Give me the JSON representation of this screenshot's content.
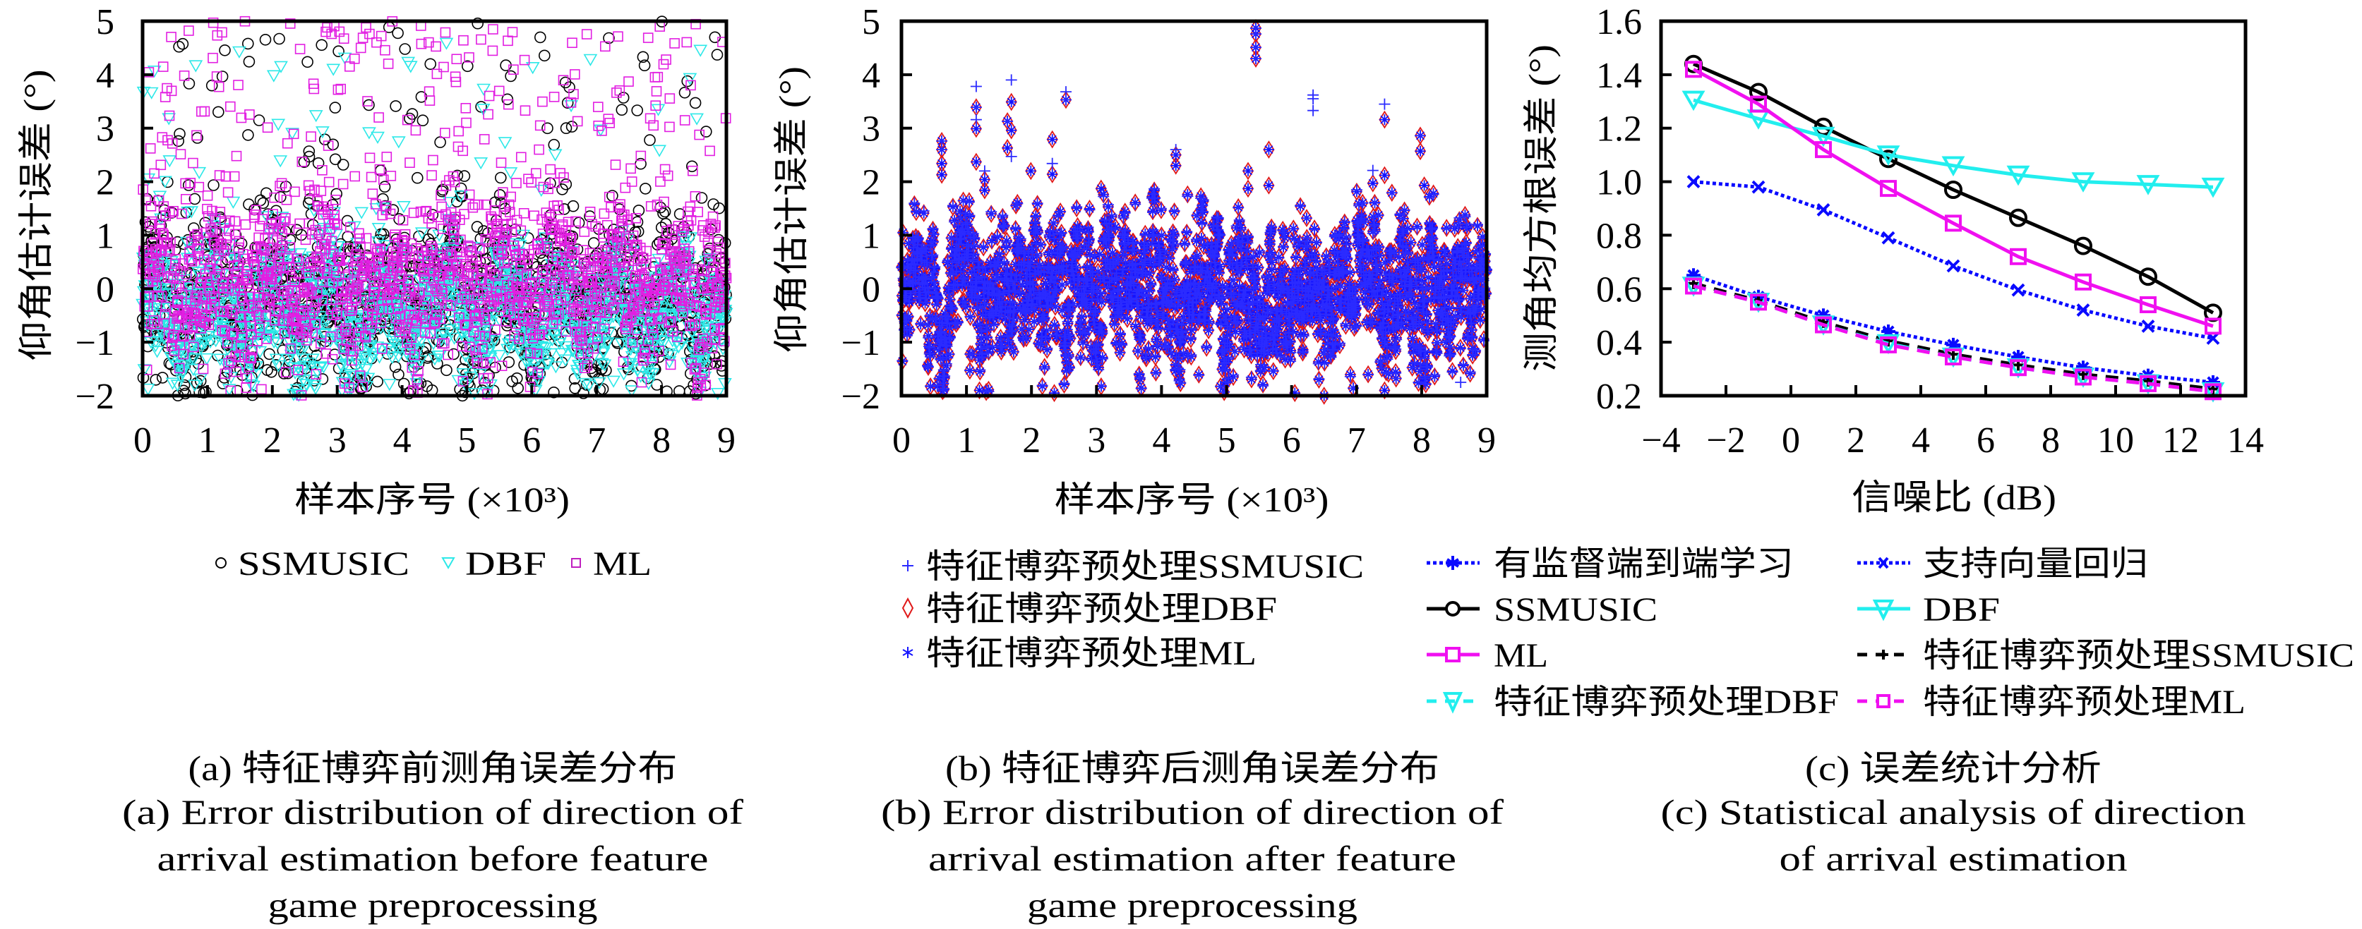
{
  "chart_data": [
    {
      "id": "a",
      "type": "scatter",
      "caption": [
        "(a) 特征博弈前测角误差分布",
        "(a) Error distribution of direction of",
        "arrival estimation before feature",
        "game preprocessing"
      ],
      "xlabel": "样本序号 (×10³)",
      "ylabel": "仰角估计误差 (°)",
      "xlim": [
        0,
        9
      ],
      "ylim": [
        -2,
        5
      ],
      "xtick_values": [
        0,
        1,
        2,
        3,
        4,
        5,
        6,
        7,
        8,
        9
      ],
      "xticks": [
        "0",
        "1",
        "2",
        "3",
        "4",
        "5",
        "6",
        "7",
        "8",
        "9"
      ],
      "ytick_values": [
        -2,
        -1,
        0,
        1,
        2,
        3,
        4,
        5
      ],
      "yticks": [
        "−2",
        "−1",
        "0",
        "1",
        "2",
        "3",
        "4",
        "5"
      ],
      "grid": false,
      "legend_position": "bottom",
      "series": [
        {
          "name": "SSMUSIC",
          "marker": "circle",
          "color": "#000000",
          "n_samples": 9000,
          "mean": -0.25,
          "std": 0.8,
          "upper_outlier_fraction": 0.05,
          "upper_outlier_range": [
            1.4,
            5
          ]
        },
        {
          "name": "DBF",
          "marker": "triangle-down",
          "color": "#2ce8e8",
          "n_samples": 9000,
          "mean": -0.45,
          "std": 0.6,
          "upper_outlier_fraction": 0.03,
          "upper_outlier_range": [
            1.4,
            4.6
          ]
        },
        {
          "name": "ML",
          "marker": "square",
          "color": "#e21ee2",
          "n_samples": 9000,
          "mean": 0.15,
          "std": 0.75,
          "upper_outlier_fraction": 0.12,
          "upper_outlier_range": [
            1.4,
            5
          ]
        }
      ]
    },
    {
      "id": "b",
      "type": "scatter",
      "caption": [
        "(b) 特征博弈后测角误差分布",
        "(b) Error distribution of direction of",
        "arrival estimation after feature",
        "game preprocessing"
      ],
      "xlabel": "样本序号 (×10³)",
      "ylabel": "仰角估计误差 (°)",
      "xlim": [
        0,
        9
      ],
      "ylim": [
        -2,
        5
      ],
      "xtick_values": [
        0,
        1,
        2,
        3,
        4,
        5,
        6,
        7,
        8,
        9
      ],
      "xticks": [
        "0",
        "1",
        "2",
        "3",
        "4",
        "5",
        "6",
        "7",
        "8",
        "9"
      ],
      "ytick_values": [
        -2,
        -1,
        0,
        1,
        2,
        3,
        4,
        5
      ],
      "yticks": [
        "−2",
        "−1",
        "0",
        "1",
        "2",
        "3",
        "4",
        "5"
      ],
      "grid": false,
      "legend_position": "bottom",
      "band": {
        "n_samples": 9000,
        "min": -1.95,
        "max": 1.85,
        "std": 0.5
      },
      "series": [
        {
          "name": "特征博弈预处理SSMUSIC",
          "marker": "plus",
          "color": "#2b2bff",
          "outliers": [
            [
              1.15,
              3.78
            ],
            [
              1.15,
              3.16
            ],
            [
              1.28,
              2.2
            ],
            [
              1.69,
              3.9
            ],
            [
              1.69,
              2.47
            ],
            [
              2.32,
              2.34
            ],
            [
              2.53,
              3.68
            ],
            [
              4.22,
              2.6
            ],
            [
              6.33,
              3.62
            ],
            [
              6.33,
              3.55
            ],
            [
              6.33,
              3.33
            ],
            [
              7.25,
              2.21
            ],
            [
              7.43,
              3.45
            ],
            [
              8.6,
              -1.75
            ],
            [
              0.62,
              2.76
            ],
            [
              0.62,
              2.6
            ],
            [
              1.15,
              3.39
            ],
            [
              1.63,
              3.13
            ],
            [
              2.53,
              3.53
            ],
            [
              5.45,
              4.87
            ],
            [
              5.45,
              4.76
            ],
            [
              5.45,
              4.51
            ],
            [
              5.45,
              4.3
            ],
            [
              7.98,
              2.86
            ]
          ]
        },
        {
          "name": "特征博弈预处理DBF",
          "marker": "diamond",
          "color": "#e01818",
          "outliers": [
            [
              0.62,
              2.76
            ],
            [
              0.62,
              2.6
            ],
            [
              0.62,
              2.34
            ],
            [
              0.62,
              2.13
            ],
            [
              1.15,
              3.39
            ],
            [
              1.15,
              2.99
            ],
            [
              1.15,
              2.37
            ],
            [
              1.28,
              2.04
            ],
            [
              1.28,
              1.84
            ],
            [
              1.63,
              3.13
            ],
            [
              1.63,
              2.63
            ],
            [
              1.69,
              3.49
            ],
            [
              1.69,
              2.96
            ],
            [
              1.99,
              2.2
            ],
            [
              2.32,
              2.79
            ],
            [
              2.32,
              2.14
            ],
            [
              2.53,
              3.53
            ],
            [
              3.07,
              1.87
            ],
            [
              4.22,
              2.5
            ],
            [
              4.22,
              2.3
            ],
            [
              5.45,
              4.87
            ],
            [
              5.45,
              4.76
            ],
            [
              5.45,
              4.51
            ],
            [
              5.45,
              4.3
            ],
            [
              5.33,
              2.2
            ],
            [
              5.33,
              1.87
            ],
            [
              5.65,
              2.6
            ],
            [
              5.65,
              1.93
            ],
            [
              7.25,
              1.97
            ],
            [
              7.43,
              3.16
            ],
            [
              7.43,
              2.12
            ],
            [
              7.98,
              2.86
            ],
            [
              7.98,
              2.57
            ],
            [
              8.04,
              1.93
            ],
            [
              1.2,
              -1.9
            ],
            [
              2.35,
              -1.95
            ],
            [
              6.05,
              -1.95
            ],
            [
              6.5,
              -2.0
            ],
            [
              7.43,
              -1.9
            ]
          ]
        },
        {
          "name": "特征博弈预处理ML",
          "marker": "star",
          "color": "#1414ff",
          "outliers": [
            [
              0.62,
              2.76
            ],
            [
              0.62,
              2.6
            ],
            [
              0.62,
              2.34
            ],
            [
              0.62,
              2.13
            ],
            [
              1.15,
              3.39
            ],
            [
              1.15,
              2.99
            ],
            [
              1.15,
              2.37
            ],
            [
              1.28,
              2.04
            ],
            [
              1.28,
              1.84
            ],
            [
              1.63,
              3.13
            ],
            [
              1.63,
              2.63
            ],
            [
              1.69,
              3.49
            ],
            [
              1.69,
              2.96
            ],
            [
              1.99,
              2.2
            ],
            [
              2.32,
              2.79
            ],
            [
              2.32,
              2.14
            ],
            [
              2.53,
              3.53
            ],
            [
              3.07,
              1.87
            ],
            [
              4.22,
              2.5
            ],
            [
              4.22,
              2.3
            ],
            [
              5.45,
              4.87
            ],
            [
              5.45,
              4.76
            ],
            [
              5.45,
              4.51
            ],
            [
              5.45,
              4.3
            ],
            [
              5.33,
              2.2
            ],
            [
              5.33,
              1.87
            ],
            [
              5.65,
              2.6
            ],
            [
              5.65,
              1.93
            ],
            [
              7.25,
              1.97
            ],
            [
              7.43,
              3.16
            ],
            [
              7.43,
              2.12
            ],
            [
              7.98,
              2.86
            ],
            [
              7.98,
              2.57
            ],
            [
              8.04,
              1.93
            ],
            [
              1.2,
              -1.9
            ],
            [
              2.35,
              -1.95
            ],
            [
              6.05,
              -1.95
            ],
            [
              6.5,
              -2.0
            ],
            [
              7.43,
              -1.9
            ]
          ]
        }
      ]
    },
    {
      "id": "c",
      "type": "line",
      "caption": [
        "(c) 误差统计分析",
        "(c) Statistical analysis of direction",
        "of arrival estimation"
      ],
      "xlabel": "信噪比 (dB)",
      "ylabel": "测角均方根误差 (°)",
      "xlim": [
        -4,
        14
      ],
      "ylim": [
        0.2,
        1.6
      ],
      "xtick_values": [
        -4,
        -2,
        0,
        2,
        4,
        6,
        8,
        10,
        12,
        14
      ],
      "xticks": [
        "−4",
        "−2",
        "0",
        "2",
        "4",
        "6",
        "8",
        "10",
        "12",
        "14"
      ],
      "ytick_values": [
        0.2,
        0.4,
        0.6,
        0.8,
        1.0,
        1.2,
        1.4,
        1.6
      ],
      "yticks": [
        "0.2",
        "0.4",
        "0.6",
        "0.8",
        "1.0",
        "1.2",
        "1.4",
        "1.6"
      ],
      "grid": false,
      "legend_position": "bottom",
      "x": [
        -3,
        -1,
        1,
        3,
        5,
        7,
        9,
        11,
        13
      ],
      "series": [
        {
          "name": "有监督端到端学习",
          "marker": "star",
          "line": "dotted",
          "color": "#0a0aff",
          "values": [
            0.65,
            0.57,
            0.5,
            0.44,
            0.39,
            0.345,
            0.305,
            0.275,
            0.25
          ]
        },
        {
          "name": "支持向量回归",
          "marker": "x",
          "line": "dotted",
          "color": "#0a0aff",
          "values": [
            1.0,
            0.98,
            0.895,
            0.79,
            0.685,
            0.595,
            0.52,
            0.46,
            0.415
          ]
        },
        {
          "name": "SSMUSIC",
          "marker": "circle",
          "line": "solid",
          "color": "#000000",
          "values": [
            1.44,
            1.335,
            1.205,
            1.085,
            0.97,
            0.865,
            0.76,
            0.645,
            0.51
          ]
        },
        {
          "name": "DBF",
          "marker": "triangle-down",
          "line": "solid",
          "color": "#22eeee",
          "values": [
            1.305,
            1.235,
            1.17,
            1.1,
            1.06,
            1.025,
            1.0,
            0.99,
            0.98
          ]
        },
        {
          "name": "ML",
          "marker": "square",
          "line": "solid",
          "color": "#f010f0",
          "values": [
            1.42,
            1.29,
            1.12,
            0.975,
            0.845,
            0.72,
            0.625,
            0.54,
            0.46
          ]
        },
        {
          "name": "特征博弈预处理SSMUSIC",
          "marker": "plus",
          "line": "dashed",
          "color": "#000000",
          "values": [
            0.62,
            0.555,
            0.475,
            0.405,
            0.355,
            0.315,
            0.28,
            0.255,
            0.225
          ]
        },
        {
          "name": "特征博弈预处理DBF",
          "marker": "triangle-down",
          "line": "dashed",
          "color": "#22eeee",
          "values": [
            0.61,
            0.55,
            0.465,
            0.395,
            0.345,
            0.305,
            0.27,
            0.245,
            0.215
          ]
        },
        {
          "name": "特征博弈预处理ML",
          "marker": "square",
          "line": "dashed",
          "color": "#f010f0",
          "values": [
            0.61,
            0.55,
            0.465,
            0.39,
            0.345,
            0.305,
            0.27,
            0.245,
            0.215
          ]
        }
      ]
    }
  ]
}
